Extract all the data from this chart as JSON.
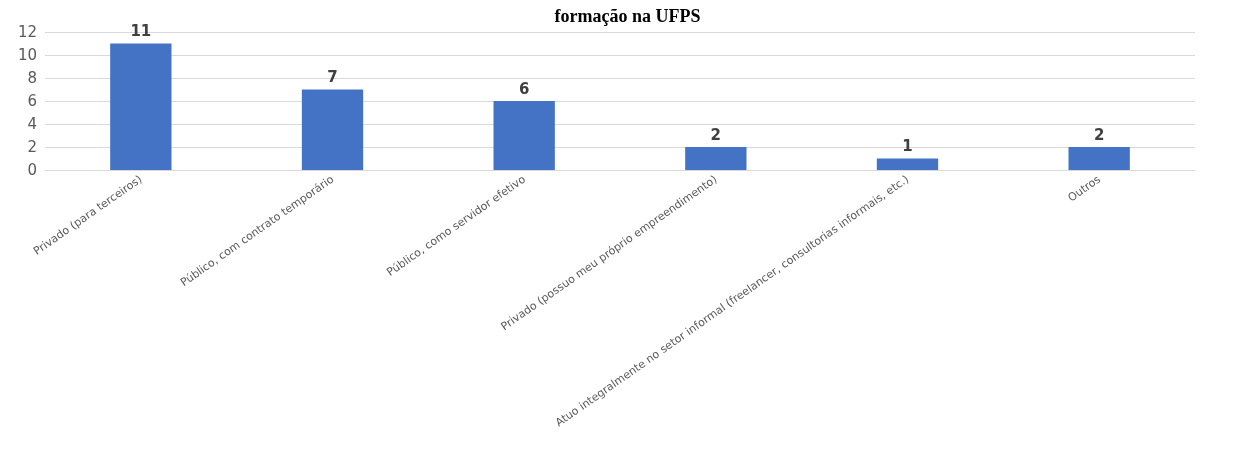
{
  "chart_data": {
    "type": "bar",
    "title": "formação na UFPS",
    "categories": [
      "Privado (para terceiros)",
      "Público, com contrato temporário",
      "Público, como servidor efetivo",
      "Privado (possuo meu próprio empreendimento)",
      "Atuo integralmente no setor informal (freelancer, consultorias informais, etc.)",
      "Outros"
    ],
    "values": [
      11,
      7,
      6,
      2,
      1,
      2
    ],
    "color": "#4472c4",
    "ylim": [
      0,
      12
    ],
    "yticks": [
      0,
      2,
      4,
      6,
      8,
      10,
      12
    ],
    "grid": "y",
    "data_labels": true
  }
}
